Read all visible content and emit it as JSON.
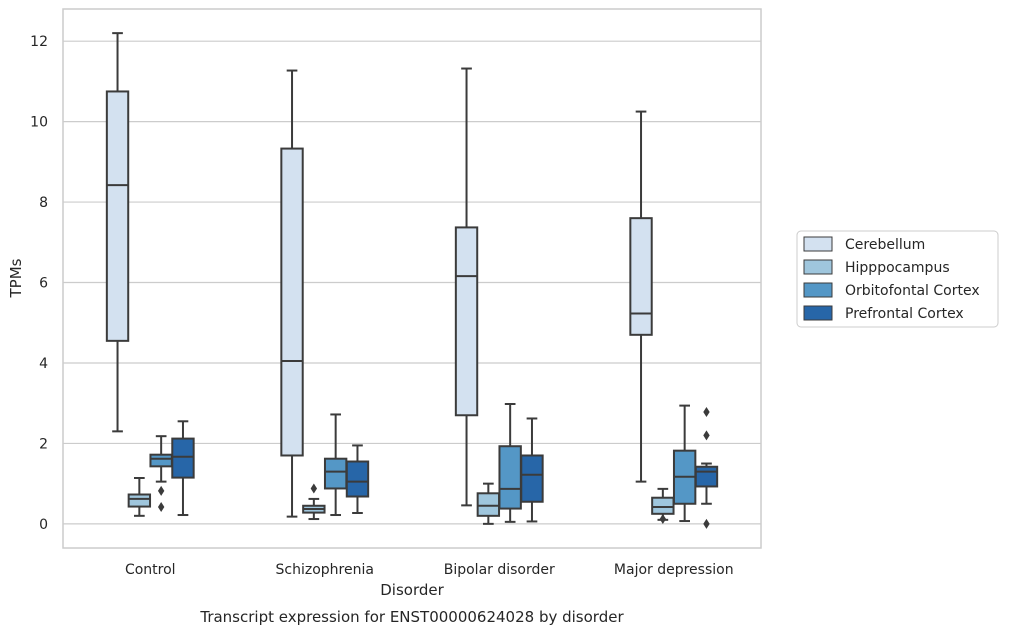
{
  "chart_data": {
    "type": "box",
    "xlabel": "Disorder",
    "ylabel": "TPMs",
    "caption": "Transcript expression for ENST00000624028 by disorder",
    "categories": [
      "Control",
      "Schizophrenia",
      "Bipolar disorder",
      "Major depression"
    ],
    "ylim": [
      -0.6,
      12.8
    ],
    "yticks": [
      0,
      2,
      4,
      6,
      8,
      10,
      12
    ],
    "grid": true,
    "legend_position": "right",
    "series": [
      {
        "name": "Cerebellum",
        "color": "#d3e1f0",
        "boxes": [
          {
            "whislo": 2.3,
            "q1": 4.55,
            "med": 8.42,
            "q3": 10.75,
            "whishi": 12.2,
            "fliers": []
          },
          {
            "whislo": 0.18,
            "q1": 1.7,
            "med": 4.05,
            "q3": 9.33,
            "whishi": 11.27,
            "fliers": []
          },
          {
            "whislo": 0.46,
            "q1": 2.7,
            "med": 6.16,
            "q3": 7.37,
            "whishi": 11.32,
            "fliers": []
          },
          {
            "whislo": 1.05,
            "q1": 4.7,
            "med": 5.23,
            "q3": 7.6,
            "whishi": 10.25,
            "fliers": []
          }
        ]
      },
      {
        "name": "Hipppocampus",
        "color": "#9fc6dd",
        "boxes": [
          {
            "whislo": 0.2,
            "q1": 0.43,
            "med": 0.62,
            "q3": 0.73,
            "whishi": 1.14,
            "fliers": []
          },
          {
            "whislo": 0.12,
            "q1": 0.28,
            "med": 0.37,
            "q3": 0.45,
            "whishi": 0.62,
            "fliers": [
              0.88
            ]
          },
          {
            "whislo": 0.0,
            "q1": 0.2,
            "med": 0.45,
            "q3": 0.76,
            "whishi": 1.0,
            "fliers": []
          },
          {
            "whislo": 0.1,
            "q1": 0.25,
            "med": 0.42,
            "q3": 0.65,
            "whishi": 0.87,
            "fliers": [
              0.12
            ]
          }
        ]
      },
      {
        "name": "Orbitofontal Cortex",
        "color": "#5497c6",
        "boxes": [
          {
            "whislo": 1.05,
            "q1": 1.43,
            "med": 1.62,
            "q3": 1.72,
            "whishi": 2.18,
            "fliers": [
              0.82,
              0.42
            ]
          },
          {
            "whislo": 0.22,
            "q1": 0.88,
            "med": 1.3,
            "q3": 1.62,
            "whishi": 2.72,
            "fliers": []
          },
          {
            "whislo": 0.05,
            "q1": 0.38,
            "med": 0.87,
            "q3": 1.93,
            "whishi": 2.98,
            "fliers": []
          },
          {
            "whislo": 0.07,
            "q1": 0.5,
            "med": 1.17,
            "q3": 1.82,
            "whishi": 2.94,
            "fliers": []
          }
        ]
      },
      {
        "name": "Prefrontal Cortex",
        "color": "#2766a8",
        "boxes": [
          {
            "whislo": 0.22,
            "q1": 1.15,
            "med": 1.67,
            "q3": 2.12,
            "whishi": 2.55,
            "fliers": []
          },
          {
            "whislo": 0.27,
            "q1": 0.68,
            "med": 1.05,
            "q3": 1.55,
            "whishi": 1.95,
            "fliers": []
          },
          {
            "whislo": 0.06,
            "q1": 0.55,
            "med": 1.22,
            "q3": 1.7,
            "whishi": 2.62,
            "fliers": []
          },
          {
            "whislo": 0.5,
            "q1": 0.93,
            "med": 1.3,
            "q3": 1.42,
            "whishi": 1.5,
            "fliers": [
              2.78,
              2.2,
              0.0
            ]
          }
        ]
      }
    ]
  }
}
